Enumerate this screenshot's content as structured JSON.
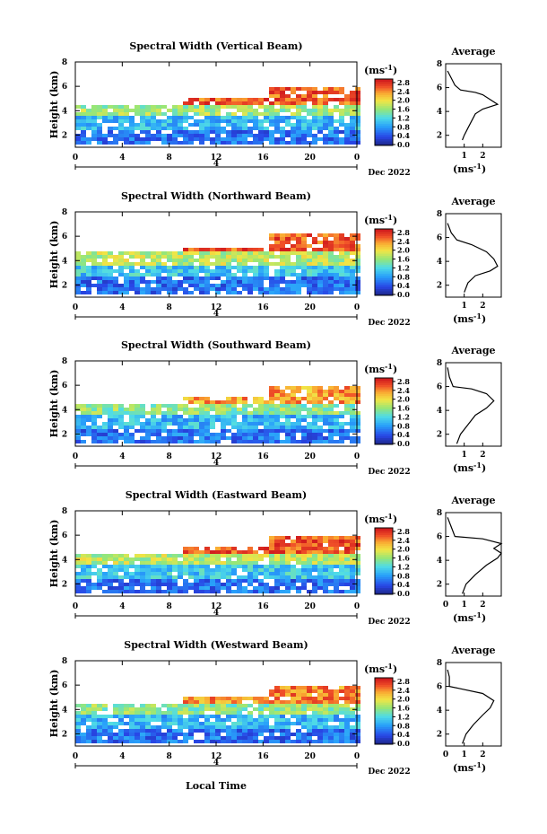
{
  "figure": {
    "x_axis_label": "Local Time",
    "date_label": "Dec 2022",
    "day_label": "4",
    "units_label": "(ms",
    "units_exp": "-1",
    "units_close": ")",
    "profile_title": "Average",
    "y_axis_label": "Height (km)"
  },
  "chart_data": [
    {
      "type": "heatmap",
      "title": "Spectral Width (Vertical Beam)",
      "ylabel": "Height (km)",
      "x_ticks": [
        "0",
        "4",
        "8",
        "12",
        "16",
        "20",
        "0"
      ],
      "y_ticks": [
        "2",
        "4",
        "6",
        "8"
      ],
      "xlim": [
        0,
        24
      ],
      "ylim": [
        1,
        8
      ],
      "colorbar": {
        "ticks": [
          "0.0",
          "0.4",
          "0.8",
          "1.2",
          "1.6",
          "2.0",
          "2.4",
          "2.8"
        ],
        "range": [
          0,
          3.0
        ]
      },
      "layers": [
        {
          "h": [
            1.5,
            2.6
          ],
          "v": 0.6
        },
        {
          "h": [
            2.6,
            3.6
          ],
          "v": 1.0
        },
        {
          "h": [
            3.6,
            4.6
          ],
          "v": 1.7
        },
        {
          "h": [
            4.6,
            6.2
          ],
          "v": 2.7,
          "x_from": 16.5
        }
      ],
      "profile": {
        "xlim": [
          0,
          3
        ],
        "x_ticks": [
          "1",
          "2"
        ],
        "points": [
          [
            0.9,
            1.6
          ],
          [
            1.0,
            2.0
          ],
          [
            1.2,
            2.6
          ],
          [
            1.4,
            3.2
          ],
          [
            1.6,
            3.8
          ],
          [
            2.0,
            4.2
          ],
          [
            2.8,
            4.6
          ],
          [
            2.4,
            5.0
          ],
          [
            2.0,
            5.4
          ],
          [
            1.6,
            5.6
          ],
          [
            0.8,
            5.8
          ],
          [
            0.5,
            6.2
          ],
          [
            0.3,
            6.8
          ],
          [
            0.1,
            7.4
          ]
        ]
      }
    },
    {
      "type": "heatmap",
      "title": "Spectral Width (Northward Beam)",
      "ylabel": "Height (km)",
      "x_ticks": [
        "0",
        "4",
        "8",
        "12",
        "16",
        "20",
        "0"
      ],
      "y_ticks": [
        "2",
        "4",
        "6",
        "8"
      ],
      "xlim": [
        0,
        24
      ],
      "ylim": [
        1,
        8
      ],
      "colorbar": {
        "ticks": [
          "0.0",
          "0.4",
          "0.8",
          "1.2",
          "1.6",
          "2.0",
          "2.4",
          "2.8"
        ],
        "range": [
          0,
          3.0
        ]
      },
      "layers": [
        {
          "h": [
            1.5,
            2.8
          ],
          "v": 0.6
        },
        {
          "h": [
            2.8,
            3.8
          ],
          "v": 1.1
        },
        {
          "h": [
            3.8,
            4.8
          ],
          "v": 1.8
        },
        {
          "h": [
            4.8,
            6.4
          ],
          "v": 2.7,
          "x_from": 16.5
        }
      ],
      "profile": {
        "xlim": [
          0,
          3
        ],
        "x_ticks": [
          "1",
          "2"
        ],
        "points": [
          [
            1.0,
            1.4
          ],
          [
            1.2,
            2.2
          ],
          [
            1.6,
            2.8
          ],
          [
            2.4,
            3.2
          ],
          [
            2.8,
            3.6
          ],
          [
            2.6,
            4.2
          ],
          [
            2.2,
            4.8
          ],
          [
            1.4,
            5.4
          ],
          [
            0.6,
            5.8
          ],
          [
            0.3,
            6.4
          ],
          [
            0.1,
            7.2
          ]
        ]
      }
    },
    {
      "type": "heatmap",
      "title": "Spectral Width (Southward Beam)",
      "ylabel": "Height (km)",
      "x_ticks": [
        "0",
        "4",
        "8",
        "12",
        "16",
        "20",
        "0"
      ],
      "y_ticks": [
        "2",
        "4",
        "6",
        "8"
      ],
      "xlim": [
        0,
        24
      ],
      "ylim": [
        1,
        8
      ],
      "colorbar": {
        "ticks": [
          "0.0",
          "0.4",
          "0.8",
          "1.2",
          "1.6",
          "2.0",
          "2.4",
          "2.8"
        ],
        "range": [
          0,
          3.0
        ]
      },
      "layers": [
        {
          "h": [
            1.3,
            2.6
          ],
          "v": 0.6
        },
        {
          "h": [
            2.6,
            3.6
          ],
          "v": 1.0
        },
        {
          "h": [
            3.6,
            4.6
          ],
          "v": 1.6
        },
        {
          "h": [
            4.6,
            6.0
          ],
          "v": 2.4,
          "x_from": 16.5
        }
      ],
      "profile": {
        "xlim": [
          0,
          3
        ],
        "x_ticks": [
          "1",
          "2"
        ],
        "points": [
          [
            0.6,
            1.2
          ],
          [
            0.8,
            2.0
          ],
          [
            1.2,
            2.8
          ],
          [
            1.6,
            3.6
          ],
          [
            2.2,
            4.2
          ],
          [
            2.6,
            4.8
          ],
          [
            2.2,
            5.4
          ],
          [
            1.4,
            5.8
          ],
          [
            0.4,
            6.0
          ],
          [
            0.2,
            6.8
          ],
          [
            0.1,
            7.6
          ]
        ]
      }
    },
    {
      "type": "heatmap",
      "title": "Spectral Width (Eastward Beam)",
      "ylabel": "Height (km)",
      "x_ticks": [
        "0",
        "4",
        "8",
        "12",
        "16",
        "20",
        "0"
      ],
      "y_ticks": [
        "2",
        "4",
        "6",
        "8"
      ],
      "xlim": [
        0,
        24
      ],
      "ylim": [
        1,
        8
      ],
      "colorbar": {
        "ticks": [
          "0.0",
          "0.4",
          "0.8",
          "1.2",
          "1.6",
          "2.0",
          "2.4",
          "2.8"
        ],
        "range": [
          0,
          3.0
        ]
      },
      "layers": [
        {
          "h": [
            1.3,
            2.6
          ],
          "v": 0.6
        },
        {
          "h": [
            2.6,
            3.6
          ],
          "v": 1.1
        },
        {
          "h": [
            3.6,
            4.6
          ],
          "v": 1.8
        },
        {
          "h": [
            4.6,
            6.2
          ],
          "v": 2.7,
          "x_from": 16.5
        }
      ],
      "profile": {
        "xlim": [
          0,
          3
        ],
        "x_ticks": [
          "0",
          "1",
          "2"
        ],
        "points": [
          [
            0.9,
            1.2
          ],
          [
            1.1,
            2.0
          ],
          [
            1.6,
            2.8
          ],
          [
            2.2,
            3.6
          ],
          [
            2.8,
            4.2
          ],
          [
            3.0,
            4.6
          ],
          [
            2.6,
            5.0
          ],
          [
            3.0,
            5.4
          ],
          [
            2.0,
            5.8
          ],
          [
            0.5,
            6.0
          ],
          [
            0.3,
            6.8
          ],
          [
            0.1,
            7.6
          ]
        ]
      }
    },
    {
      "type": "heatmap",
      "title": "Spectral Width (Westward Beam)",
      "ylabel": "Height (km)",
      "x_ticks": [
        "0",
        "4",
        "8",
        "12",
        "16",
        "20",
        "0"
      ],
      "y_ticks": [
        "2",
        "4",
        "6",
        "8"
      ],
      "xlim": [
        0,
        24
      ],
      "ylim": [
        1,
        8
      ],
      "colorbar": {
        "ticks": [
          "0.0",
          "0.4",
          "0.8",
          "1.2",
          "1.6",
          "2.0",
          "2.4",
          "2.8"
        ],
        "range": [
          0,
          3.0
        ]
      },
      "layers": [
        {
          "h": [
            1.3,
            2.6
          ],
          "v": 0.6
        },
        {
          "h": [
            2.6,
            3.6
          ],
          "v": 1.0
        },
        {
          "h": [
            3.6,
            4.6
          ],
          "v": 1.6
        },
        {
          "h": [
            4.6,
            6.0
          ],
          "v": 2.5,
          "x_from": 16.5
        }
      ],
      "profile": {
        "xlim": [
          0,
          3
        ],
        "x_ticks": [
          "0",
          "1",
          "2"
        ],
        "points": [
          [
            0.9,
            1.2
          ],
          [
            1.1,
            2.0
          ],
          [
            1.5,
            2.8
          ],
          [
            2.0,
            3.6
          ],
          [
            2.4,
            4.2
          ],
          [
            2.6,
            4.8
          ],
          [
            2.0,
            5.4
          ],
          [
            0.8,
            5.8
          ],
          [
            0.2,
            6.0
          ],
          [
            0.2,
            6.8
          ],
          [
            0.1,
            7.4
          ]
        ]
      }
    }
  ]
}
